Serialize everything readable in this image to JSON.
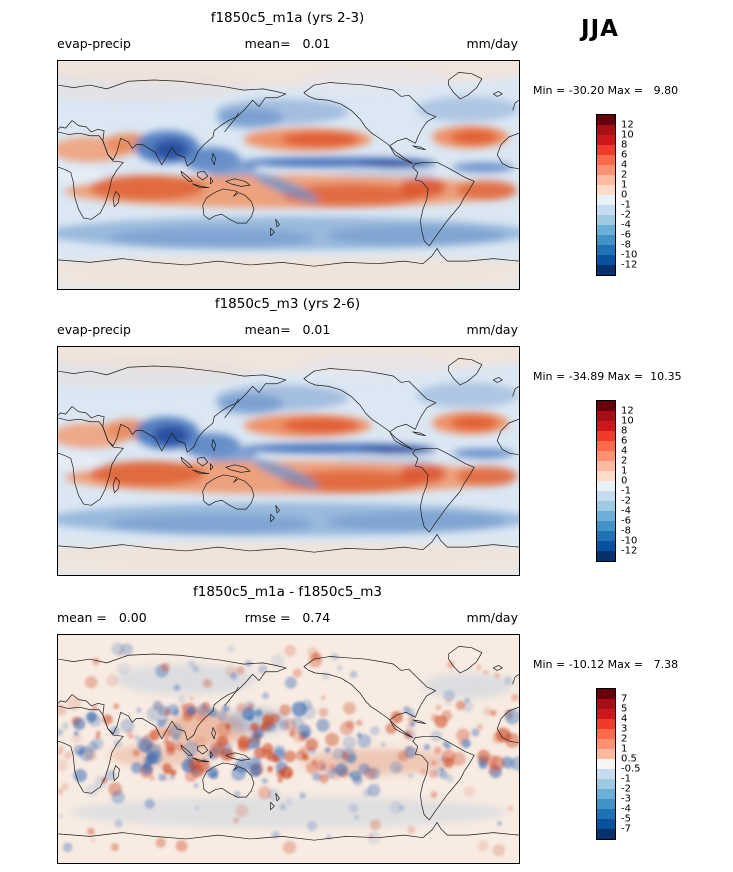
{
  "figure": {
    "season": "JJA"
  },
  "panels": [
    {
      "title": "f1850c5_m1a (yrs 2-3)",
      "left_text": "evap-precip",
      "center_text": "mean=   0.01",
      "right_text": "mm/day",
      "minmax_text": "Min = -30.20 Max =   9.80",
      "colorbar": {
        "ticks": [
          "12",
          "10",
          "8",
          "6",
          "4",
          "2",
          "1",
          "0",
          "-1",
          "-2",
          "-4",
          "-6",
          "-8",
          "-10",
          "-12"
        ],
        "colors": [
          "#67000d",
          "#a50f15",
          "#cb181d",
          "#ef3b2c",
          "#fb6a4a",
          "#fc9272",
          "#fcbba1",
          "#fddbc7",
          "#e8f0f8",
          "#c6dbef",
          "#9ecae1",
          "#6baed6",
          "#4292c6",
          "#2171b5",
          "#08519c",
          "#08306b"
        ]
      }
    },
    {
      "title": "f1850c5_m3 (yrs 2-6)",
      "left_text": "evap-precip",
      "center_text": "mean=   0.01",
      "right_text": "mm/day",
      "minmax_text": "Min = -34.89 Max =  10.35",
      "colorbar": {
        "ticks": [
          "12",
          "10",
          "8",
          "6",
          "4",
          "2",
          "1",
          "0",
          "-1",
          "-2",
          "-4",
          "-6",
          "-8",
          "-10",
          "-12"
        ],
        "colors": [
          "#67000d",
          "#a50f15",
          "#cb181d",
          "#ef3b2c",
          "#fb6a4a",
          "#fc9272",
          "#fcbba1",
          "#fddbc7",
          "#e8f0f8",
          "#c6dbef",
          "#9ecae1",
          "#6baed6",
          "#4292c6",
          "#2171b5",
          "#08519c",
          "#08306b"
        ]
      }
    },
    {
      "title": "f1850c5_m1a - f1850c5_m3",
      "left_text": "mean =   0.00",
      "center_text": "rmse =   0.74",
      "right_text": "mm/day",
      "minmax_text": "Min = -10.12 Max =   7.38",
      "colorbar": {
        "ticks": [
          "7",
          "5",
          "4",
          "3",
          "2",
          "1",
          "0.5",
          "-0.5",
          "-1",
          "-2",
          "-3",
          "-4",
          "-5",
          "-7"
        ],
        "colors": [
          "#67000d",
          "#a50f15",
          "#cb181d",
          "#ef3b2c",
          "#fb6a4a",
          "#fc9272",
          "#fcbba1",
          "#f7f4f1",
          "#c6dbef",
          "#9ecae1",
          "#6baed6",
          "#4292c6",
          "#2171b5",
          "#08519c",
          "#08306b"
        ]
      }
    }
  ],
  "chart_data": [
    {
      "type": "heatmap",
      "projection": "global lat-lon map",
      "title": "f1850c5_m1a (yrs 2-3)",
      "variable": "evap-precip",
      "season": "JJA",
      "units": "mm/day",
      "mean": 0.01,
      "min": -30.2,
      "max": 9.8,
      "contour_levels": [
        -12,
        -10,
        -8,
        -6,
        -4,
        -2,
        -1,
        0,
        1,
        2,
        4,
        6,
        8,
        10,
        12
      ],
      "palette": "blue (negative, precip excess) to red (positive, evap excess)"
    },
    {
      "type": "heatmap",
      "projection": "global lat-lon map",
      "title": "f1850c5_m3 (yrs 2-6)",
      "variable": "evap-precip",
      "season": "JJA",
      "units": "mm/day",
      "mean": 0.01,
      "min": -34.89,
      "max": 10.35,
      "contour_levels": [
        -12,
        -10,
        -8,
        -6,
        -4,
        -2,
        -1,
        0,
        1,
        2,
        4,
        6,
        8,
        10,
        12
      ],
      "palette": "blue (negative) to red (positive)"
    },
    {
      "type": "heatmap",
      "projection": "global lat-lon map",
      "title": "f1850c5_m1a - f1850c5_m3",
      "variable": "evap-precip difference",
      "season": "JJA",
      "units": "mm/day",
      "mean": 0.0,
      "rmse": 0.74,
      "min": -10.12,
      "max": 7.38,
      "contour_levels": [
        -7,
        -5,
        -4,
        -3,
        -2,
        -1,
        -0.5,
        0.5,
        1,
        2,
        3,
        4,
        5,
        7
      ],
      "palette": "blue (negative) to red (positive)"
    }
  ]
}
